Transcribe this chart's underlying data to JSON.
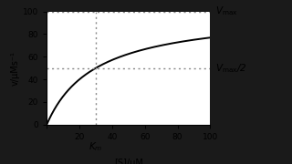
{
  "Vmax": 100,
  "Km": 30,
  "S_max": 100,
  "S_min": 0,
  "v_min": 0,
  "v_max": 100,
  "xlabel": "[S]/μM",
  "ylabel": "v/μMs⁻¹",
  "label_Vmax": "$V_{\\mathrm{max}}$",
  "label_Vmax2": "$V_{\\mathrm{max}}$/2",
  "label_Km": "$K_m$",
  "yticks": [
    0,
    20,
    40,
    60,
    80,
    100
  ],
  "xticks": [
    0,
    20,
    40,
    60,
    80,
    100
  ],
  "bg_color": "#1a1a1a",
  "plot_bg_color": "#ffffff",
  "curve_color": "#000000",
  "dotted_color": "#888888",
  "figsize": [
    3.2,
    1.8
  ],
  "dpi": 100
}
